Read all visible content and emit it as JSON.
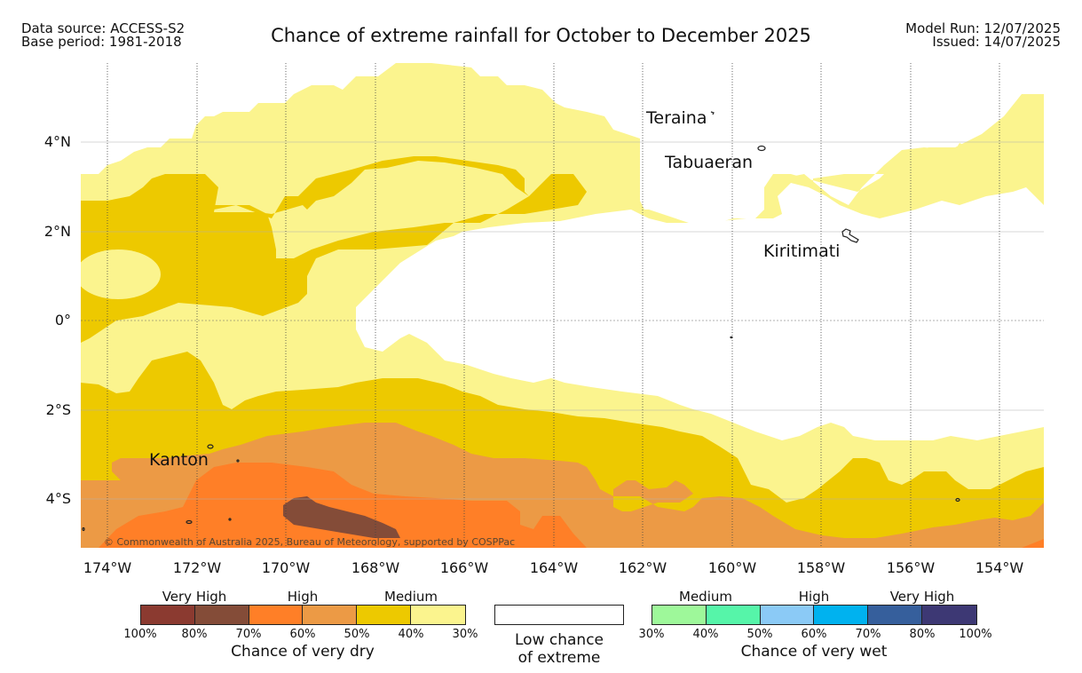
{
  "header": {
    "left_line1": "Data source: ACCESS-S2",
    "left_line2": "Base period: 1981-2018",
    "title": "Chance of extreme rainfall for October to December 2025",
    "right_line1": "Model Run: 12/07/2025",
    "right_line2": "Issued: 14/07/2025"
  },
  "map": {
    "lat_labels": [
      "4°N",
      "2°N",
      "0°",
      "2°S",
      "4°S"
    ],
    "lon_labels": [
      "174°W",
      "172°W",
      "170°W",
      "168°W",
      "166°W",
      "164°W",
      "162°W",
      "160°W",
      "158°W",
      "156°W",
      "154°W"
    ],
    "places": {
      "teraina": "Teraina",
      "tabuaeran": "Tabuaeran",
      "kiritimati": "Kiritimati",
      "kanton": "Kanton"
    },
    "copyright": "© Commonwealth of Australia 2025, Bureau of Meteorology, supported by COSPPac"
  },
  "legend": {
    "dry": {
      "caption": "Chance of very dry",
      "levels": [
        "Very High",
        "High",
        "Medium"
      ],
      "ticks": [
        "100%",
        "80%",
        "70%",
        "60%",
        "50%",
        "40%",
        "30%"
      ],
      "colors": [
        "#8b3a30",
        "#844c38",
        "#ff7f27",
        "#ec9a45",
        "#edc900",
        "#fbf48e"
      ]
    },
    "low": {
      "caption_line1": "Low chance",
      "caption_line2": "of extreme",
      "color": "#ffffff"
    },
    "wet": {
      "caption": "Chance of very wet",
      "levels": [
        "Medium",
        "High",
        "Very High"
      ],
      "ticks": [
        "30%",
        "40%",
        "50%",
        "60%",
        "70%",
        "80%",
        "100%"
      ],
      "colors": [
        "#9ef89a",
        "#56f5a9",
        "#8bcaf6",
        "#00b2ef",
        "#365f9c",
        "#3d3874"
      ]
    }
  }
}
